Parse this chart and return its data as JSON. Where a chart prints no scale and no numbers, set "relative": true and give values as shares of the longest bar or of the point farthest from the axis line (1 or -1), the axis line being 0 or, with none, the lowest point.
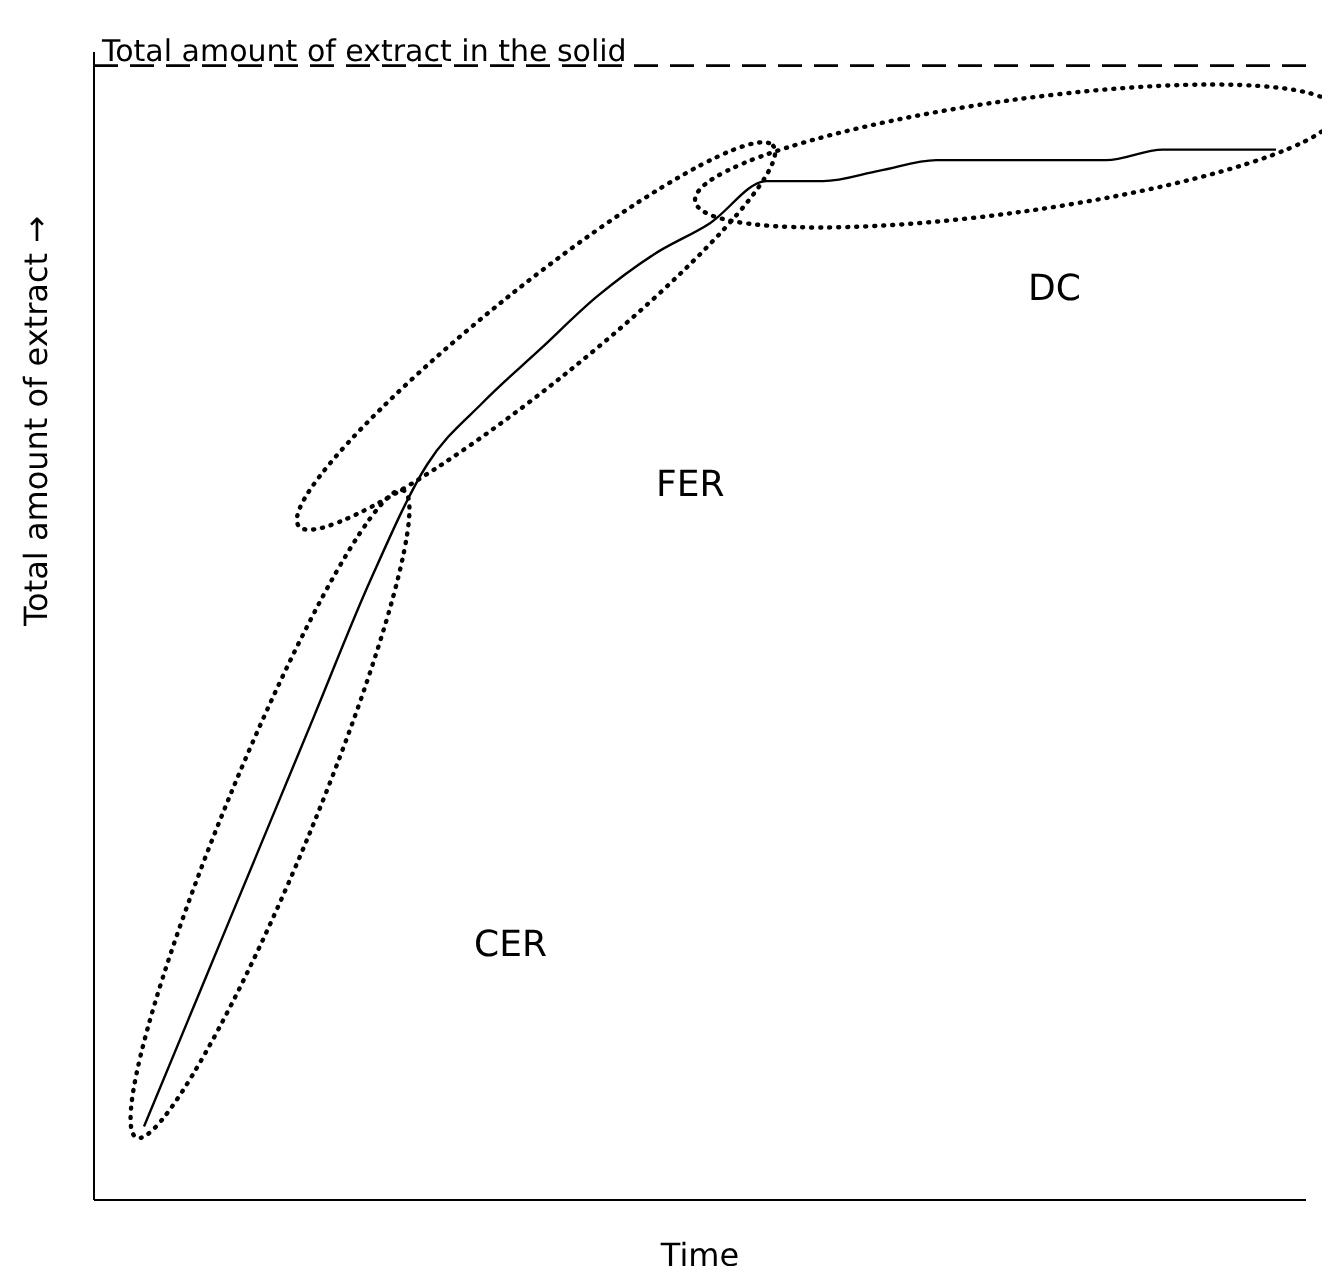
{
  "chart_data": {
    "type": "line",
    "relative": true,
    "xlabel": "Time",
    "ylabel": "Total amount of extract →",
    "categories": [
      null,
      null,
      null,
      null,
      null,
      null,
      null,
      null,
      null,
      null,
      null,
      null,
      null,
      null,
      null,
      null,
      null,
      null,
      null,
      null,
      null
    ],
    "series": [
      {
        "color": "#000000",
        "values": [
          0.07,
          0.2,
          0.33,
          0.46,
          0.59,
          0.7,
          0.76,
          0.81,
          0.86,
          0.9,
          0.93,
          0.97,
          0.97,
          0.98,
          0.99,
          0.99,
          0.99,
          0.99,
          1.0,
          1.0,
          1.0
        ]
      }
    ],
    "ref_lines": [
      {
        "axis": "y",
        "value": 1.08,
        "label": "Total amount of extract in the solid",
        "color": "#000000",
        "line_style": "dashed"
      }
    ],
    "annotations": [
      "CER",
      "FER",
      "DC"
    ],
    "grid": false,
    "marker": "none",
    "line_style": "solid"
  }
}
